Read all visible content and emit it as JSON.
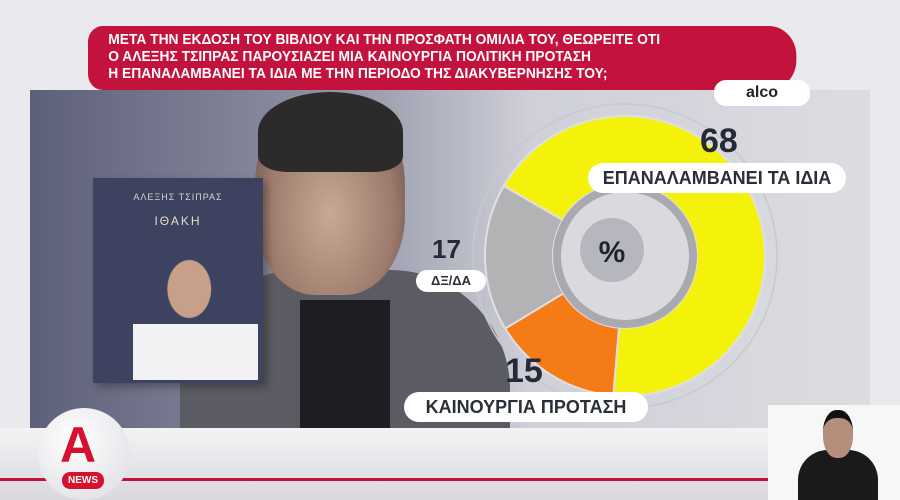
{
  "question": {
    "lines": [
      "ΜΕΤΑ ΤΗΝ ΕΚΔΟΣΗ ΤΟΥ ΒΙΒΛΙΟΥ ΚΑΙ ΤΗΝ ΠΡΟΣΦΑΤΗ ΟΜΙΛΙΑ ΤΟΥ, ΘΕΩΡΕΙΤΕ ΟΤΙ",
      "Ο ΑΛΕΞΗΣ ΤΣΙΠΡΑΣ ΠΑΡΟΥΣΙΑΖΕΙ ΜΙΑ ΚΑΙΝΟΥΡΓΙΑ ΠΟΛΙΤΙΚΗ ΠΡΟΤΑΣΗ",
      "Η ΕΠΑΝΑΛΑΜΒΑΝΕΙ ΤΑ ΙΔΙΑ ΜΕ ΤΗΝ ΠΕΡΙΟΔΟ ΤΗΣ ΔΙΑΚΥΒΕΡΝΗΣΗΣ ΤΟΥ;"
    ],
    "source": "alco"
  },
  "book": {
    "author": "ΑΛΕΞΗΣ ΤΣΙΠΡΑΣ",
    "title": "ΙΘΑΚΗ"
  },
  "logo": {
    "letter": "Α",
    "news": "NEWS"
  },
  "chart_data": {
    "type": "pie",
    "center_label": "%",
    "series": [
      {
        "name": "ΕΠΑΝΑΛΑΜΒΑΝΕΙ ΤΑ ΙΔΙΑ",
        "value": 68,
        "color": "#f4f20a"
      },
      {
        "name": "ΚΑΙΝΟΥΡΓΙΑ ΠΡΟΤΑΣΗ",
        "value": 15,
        "color": "#f47b16"
      },
      {
        "name": "ΔΞ/ΔΑ",
        "value": 17,
        "color": "#b3b3b6"
      }
    ]
  }
}
